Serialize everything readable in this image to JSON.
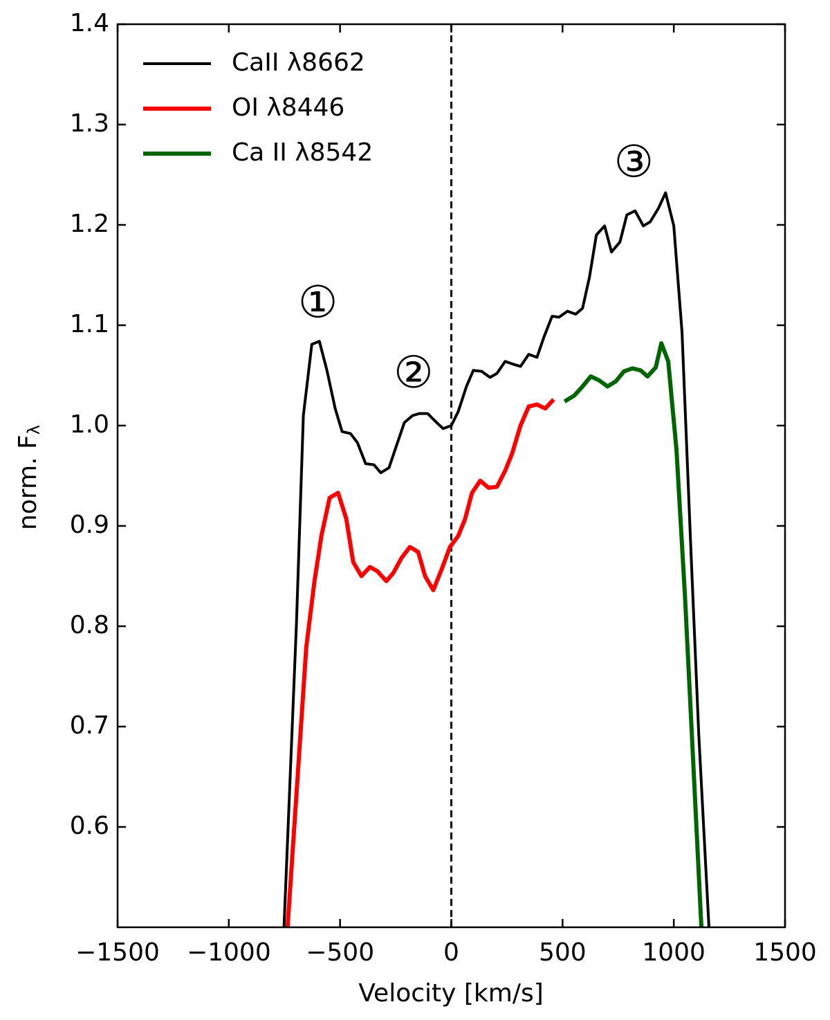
{
  "chart_data": {
    "type": "line",
    "xlabel": "Velocity [km/s]",
    "ylabel": "norm. F",
    "ylabel_subscript": "λ",
    "xlim": [
      -1500,
      1500
    ],
    "ylim": [
      0.5,
      1.4
    ],
    "xticks": [
      {
        "value": -1500,
        "label": "−1500"
      },
      {
        "value": -1000,
        "label": "−1000"
      },
      {
        "value": -500,
        "label": "−500"
      },
      0,
      500,
      1000,
      1500
    ],
    "yticks": [
      0.6,
      0.7,
      0.8,
      0.9,
      {
        "value": 1,
        "label": "1.0"
      },
      1.1,
      1.2,
      1.3,
      1.4
    ],
    "vlines": [
      0
    ],
    "legend": "upper left",
    "annotations": [
      {
        "text": "①",
        "x": -600,
        "y": 1.12
      },
      {
        "text": "②",
        "x": -170,
        "y": 1.05
      },
      {
        "text": "③",
        "x": 820,
        "y": 1.26
      }
    ],
    "series": [
      {
        "name": "CaII λ8662",
        "color": "#000000",
        "x": [
          -752,
          -696,
          -665,
          -627,
          -593,
          -559,
          -522,
          -491,
          -453,
          -422,
          -385,
          -348,
          -317,
          -280,
          -248,
          -211,
          -174,
          -143,
          -106,
          -75,
          -37,
          0,
          31,
          68,
          99,
          137,
          174,
          205,
          242,
          280,
          311,
          348,
          385,
          416,
          453,
          484,
          522,
          559,
          590,
          621,
          652,
          689,
          720,
          758,
          789,
          826,
          863,
          894,
          932,
          963,
          1000,
          1037,
          1075,
          1112,
          1158
        ],
        "values": [
          0.5,
          0.803,
          1.01,
          1.081,
          1.084,
          1.055,
          1.017,
          0.994,
          0.992,
          0.983,
          0.962,
          0.961,
          0.953,
          0.958,
          0.979,
          1.003,
          1.01,
          1.012,
          1.012,
          1.005,
          0.997,
          1.0,
          1.014,
          1.039,
          1.055,
          1.054,
          1.048,
          1.052,
          1.064,
          1.061,
          1.059,
          1.071,
          1.068,
          1.088,
          1.109,
          1.108,
          1.114,
          1.111,
          1.117,
          1.148,
          1.19,
          1.199,
          1.173,
          1.183,
          1.21,
          1.214,
          1.199,
          1.203,
          1.217,
          1.232,
          1.199,
          1.093,
          0.886,
          0.693,
          0.5
        ]
      },
      {
        "name": "OI λ8446",
        "color": "#ff0000",
        "x": [
          -736,
          -652,
          -615,
          -584,
          -547,
          -509,
          -472,
          -441,
          -404,
          -366,
          -333,
          -292,
          -261,
          -224,
          -186,
          -149,
          -118,
          -81,
          -43,
          -6,
          31,
          62,
          93,
          130,
          168,
          205,
          242,
          273,
          311,
          348,
          385,
          422,
          460
        ],
        "values": [
          0.5,
          0.779,
          0.845,
          0.89,
          0.928,
          0.933,
          0.907,
          0.864,
          0.85,
          0.859,
          0.855,
          0.845,
          0.853,
          0.868,
          0.879,
          0.874,
          0.85,
          0.836,
          0.857,
          0.879,
          0.89,
          0.907,
          0.933,
          0.945,
          0.938,
          0.939,
          0.955,
          0.972,
          1.0,
          1.019,
          1.021,
          1.017,
          1.026
        ]
      },
      {
        "name": "Ca II λ8542",
        "color": "#006400",
        "x": [
          509,
          553,
          590,
          627,
          665,
          702,
          739,
          776,
          814,
          851,
          882,
          919,
          944,
          975,
          1012,
          1050,
          1087,
          1124
        ],
        "values": [
          1.024,
          1.03,
          1.039,
          1.049,
          1.045,
          1.039,
          1.044,
          1.054,
          1.057,
          1.055,
          1.049,
          1.058,
          1.082,
          1.064,
          0.976,
          0.831,
          0.666,
          0.5
        ]
      }
    ]
  }
}
